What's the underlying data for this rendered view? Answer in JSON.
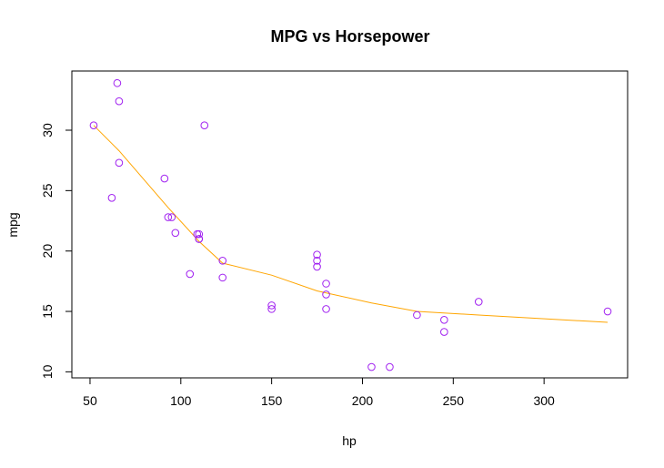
{
  "chart_data": {
    "type": "scatter",
    "title": "MPG vs Horsepower",
    "xlabel": "hp",
    "ylabel": "mpg",
    "xlim": [
      40,
      346
    ],
    "ylim": [
      9.5,
      34.9
    ],
    "xticks": [
      50,
      100,
      150,
      200,
      250,
      300
    ],
    "yticks": [
      10,
      15,
      20,
      25,
      30
    ],
    "colors": {
      "points": "#a020f0",
      "line": "#ffa500",
      "axis": "#000000"
    },
    "points": [
      {
        "x": 110,
        "y": 21.0
      },
      {
        "x": 110,
        "y": 21.0
      },
      {
        "x": 93,
        "y": 22.8
      },
      {
        "x": 110,
        "y": 21.4
      },
      {
        "x": 175,
        "y": 18.7
      },
      {
        "x": 105,
        "y": 18.1
      },
      {
        "x": 245,
        "y": 14.3
      },
      {
        "x": 62,
        "y": 24.4
      },
      {
        "x": 95,
        "y": 22.8
      },
      {
        "x": 123,
        "y": 19.2
      },
      {
        "x": 123,
        "y": 17.8
      },
      {
        "x": 180,
        "y": 16.4
      },
      {
        "x": 180,
        "y": 17.3
      },
      {
        "x": 180,
        "y": 15.2
      },
      {
        "x": 205,
        "y": 10.4
      },
      {
        "x": 215,
        "y": 10.4
      },
      {
        "x": 230,
        "y": 14.7
      },
      {
        "x": 66,
        "y": 32.4
      },
      {
        "x": 52,
        "y": 30.4
      },
      {
        "x": 65,
        "y": 33.9
      },
      {
        "x": 97,
        "y": 21.5
      },
      {
        "x": 150,
        "y": 15.5
      },
      {
        "x": 150,
        "y": 15.2
      },
      {
        "x": 245,
        "y": 13.3
      },
      {
        "x": 175,
        "y": 19.2
      },
      {
        "x": 66,
        "y": 27.3
      },
      {
        "x": 91,
        "y": 26.0
      },
      {
        "x": 113,
        "y": 30.4
      },
      {
        "x": 264,
        "y": 15.8
      },
      {
        "x": 175,
        "y": 19.7
      },
      {
        "x": 335,
        "y": 15.0
      },
      {
        "x": 109,
        "y": 21.4
      }
    ],
    "trend_line": [
      {
        "x": 52,
        "y": 30.4
      },
      {
        "x": 66,
        "y": 28.3
      },
      {
        "x": 93,
        "y": 23.6
      },
      {
        "x": 110,
        "y": 20.8
      },
      {
        "x": 123,
        "y": 19.0
      },
      {
        "x": 150,
        "y": 18.0
      },
      {
        "x": 175,
        "y": 16.7
      },
      {
        "x": 205,
        "y": 15.7
      },
      {
        "x": 230,
        "y": 15.0
      },
      {
        "x": 264,
        "y": 14.7
      },
      {
        "x": 335,
        "y": 14.1
      }
    ]
  }
}
